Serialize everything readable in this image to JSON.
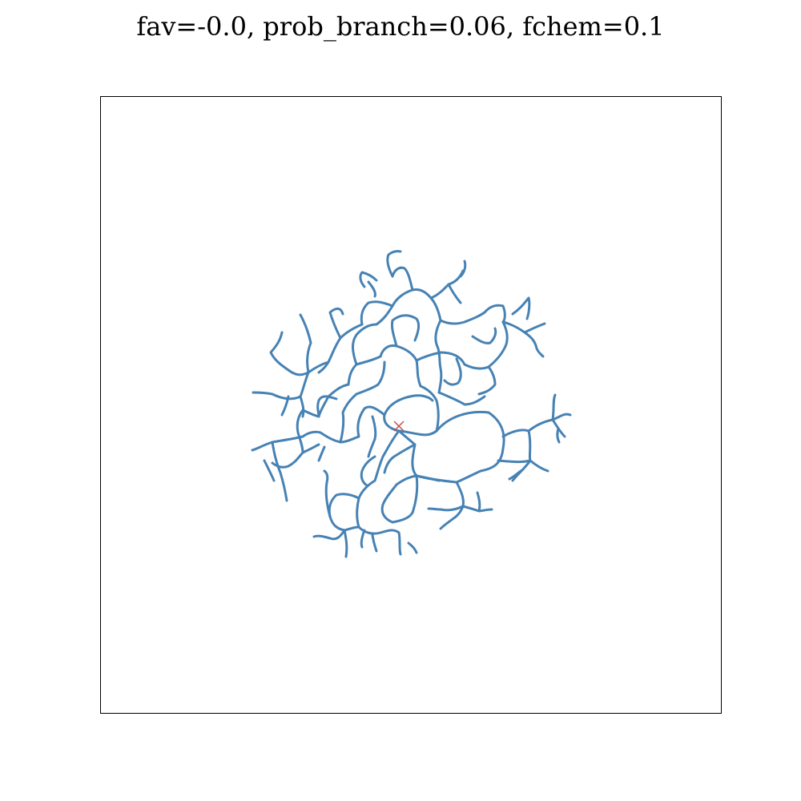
{
  "title": "fav=-0.0, prob_branch=0.06, fchem=0.1",
  "colors": {
    "network": "#4682b4",
    "origin_marker": "#c0504d",
    "frame": "#000000",
    "background": "#ffffff"
  },
  "origin_marker": {
    "symbol": "×"
  },
  "network_description": "branching vascular network"
}
